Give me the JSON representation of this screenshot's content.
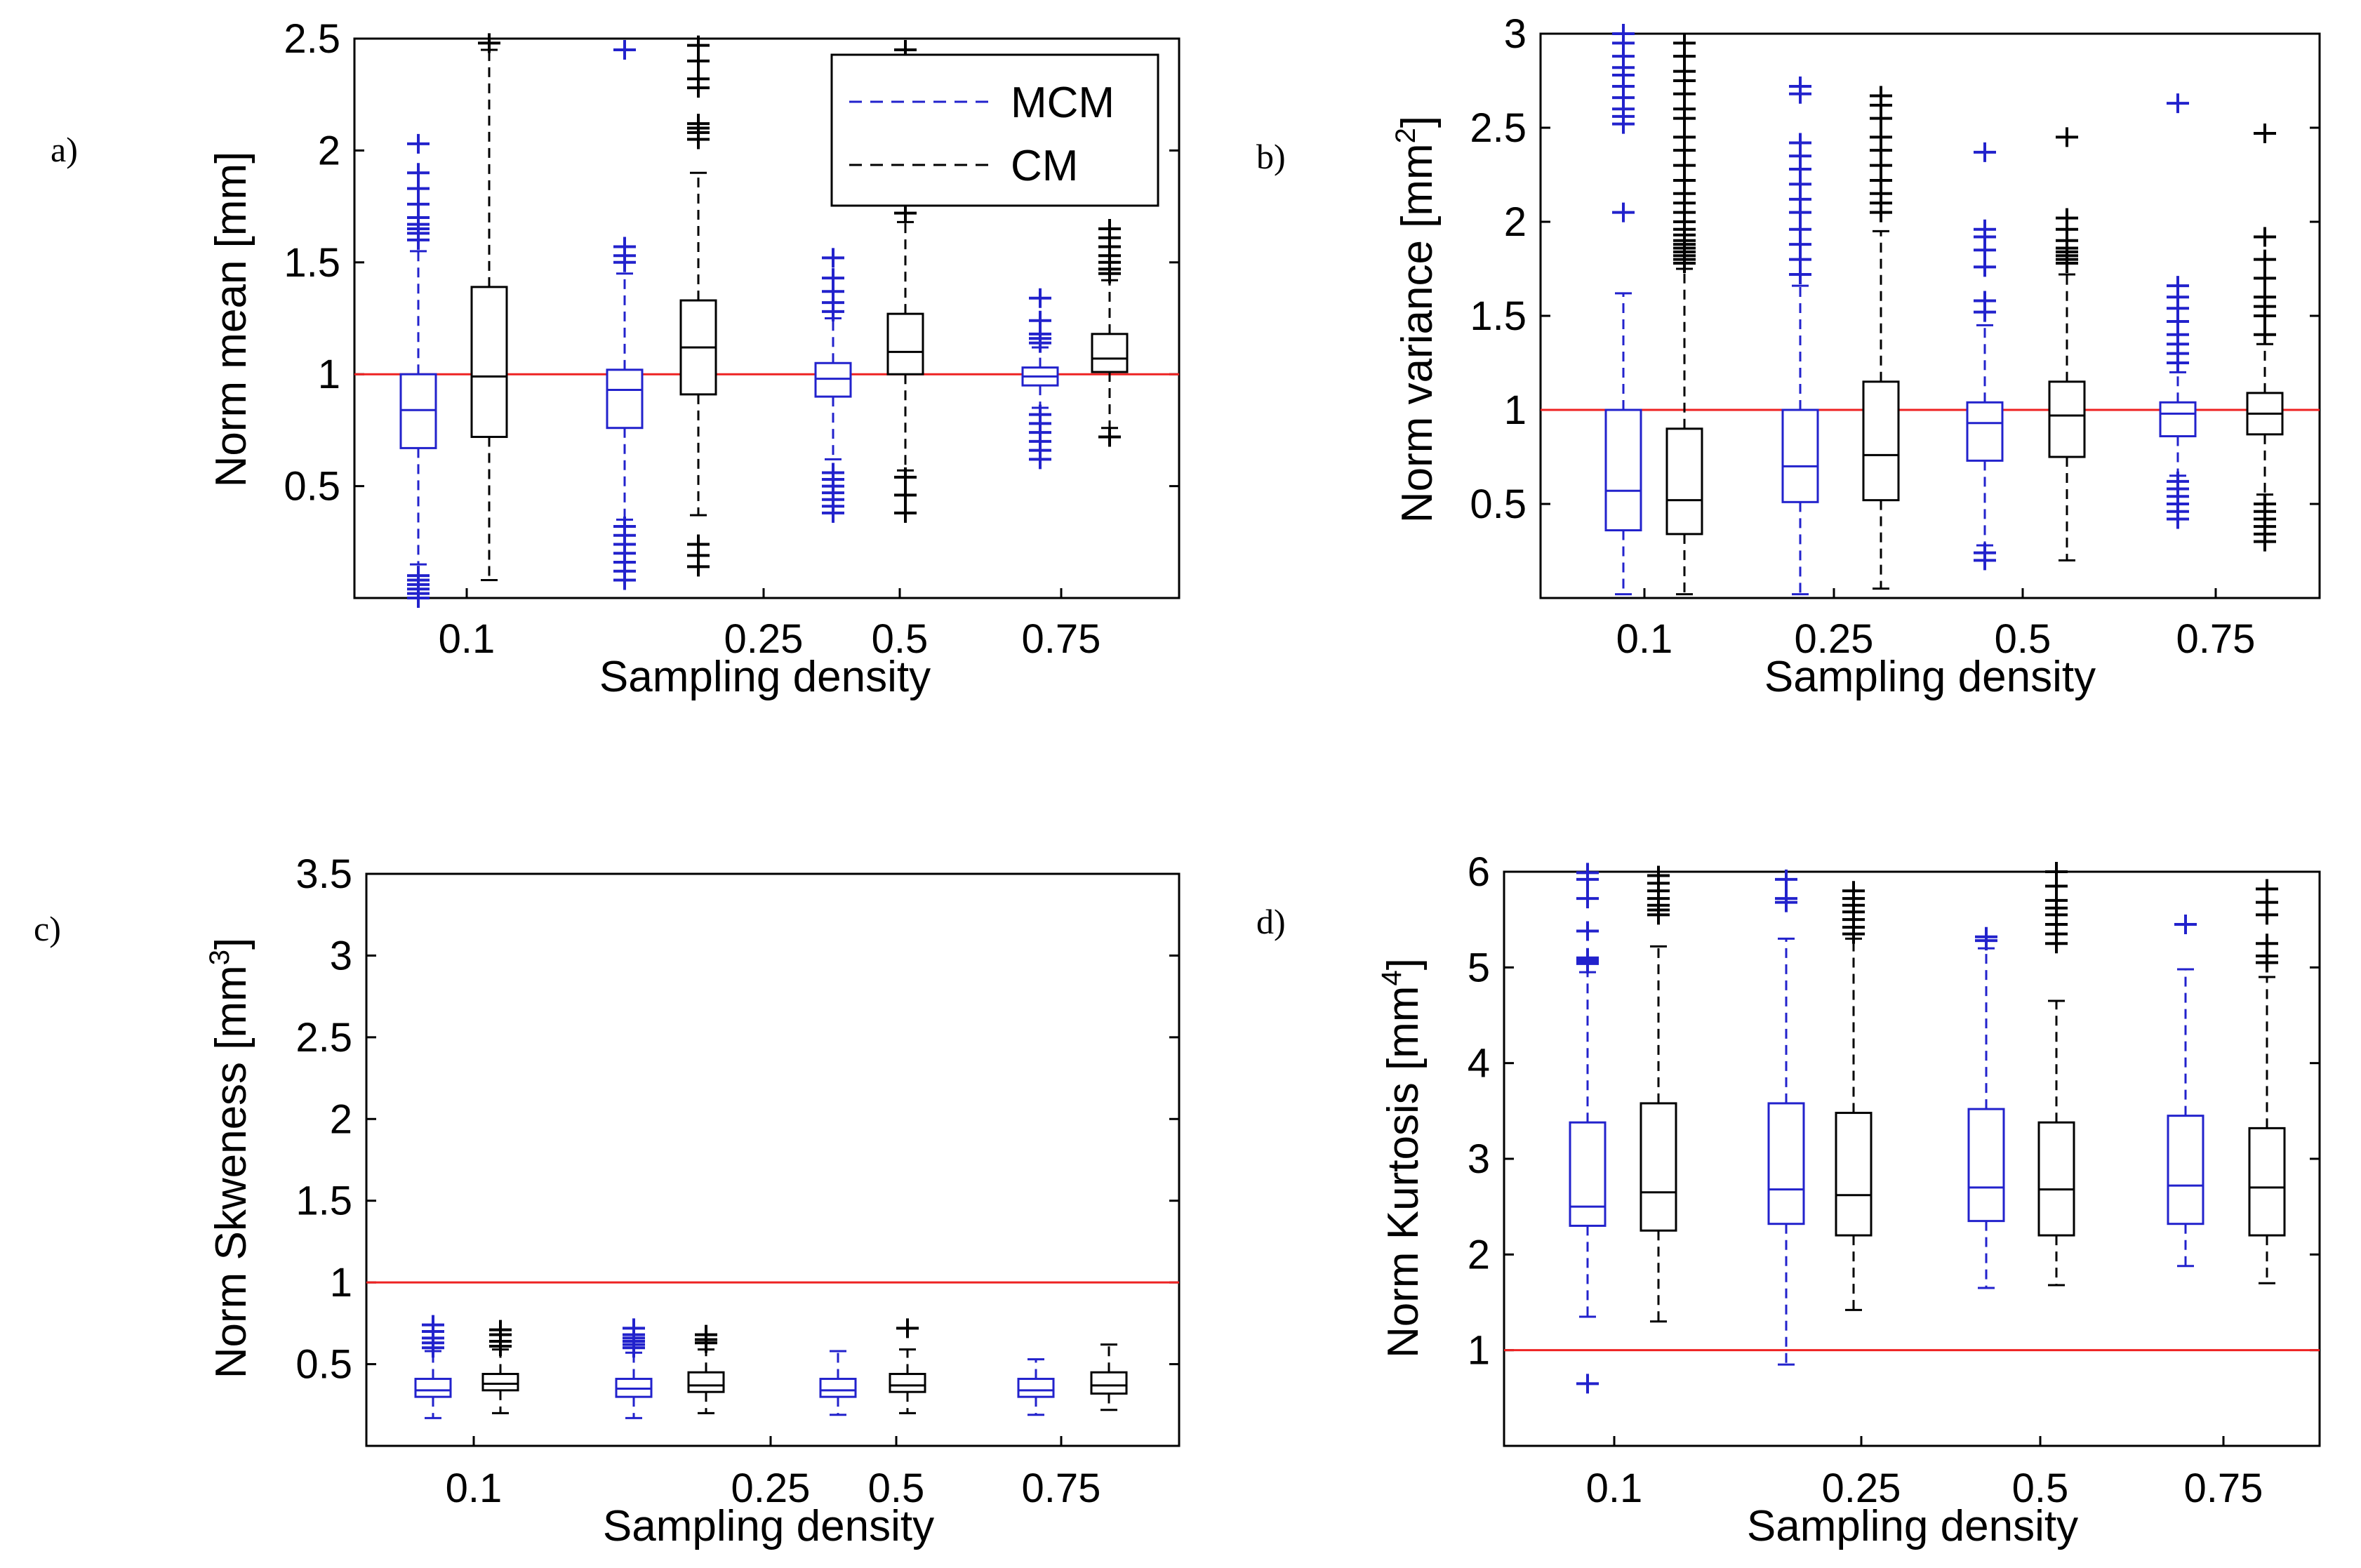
{
  "chart_data": [
    {
      "panel": "a)",
      "type": "boxplot",
      "xlabel": "Sampling density",
      "ylabel": "Norm mean [mm]",
      "ylabel_sup": "",
      "ylim": [
        0,
        2.5
      ],
      "yticks": [
        "0.5",
        "1",
        "1.5",
        "2",
        "2.5"
      ],
      "categories": [
        "0.1",
        "0.25",
        "0.5",
        "0.75"
      ],
      "reference_line": 1,
      "legend": {
        "position": "top-right",
        "entries": [
          "MCM",
          "CM"
        ]
      },
      "series": [
        {
          "name": "MCM",
          "color": "#2222cc",
          "boxes": [
            {
              "q1": 0.67,
              "median": 0.84,
              "q3": 1.0,
              "lw": 0.15,
              "uw": 1.55,
              "outliers": [
                0.0,
                0.02,
                0.04,
                0.06,
                0.08,
                0.1,
                1.6,
                1.63,
                1.65,
                1.67,
                1.7,
                1.76,
                1.83,
                1.9,
                2.03
              ]
            },
            {
              "q1": 0.76,
              "median": 0.93,
              "q3": 1.02,
              "lw": 0.35,
              "uw": 1.45,
              "outliers": [
                0.08,
                0.12,
                0.16,
                0.2,
                0.24,
                0.28,
                0.32,
                1.5,
                1.53,
                1.57,
                2.45
              ]
            },
            {
              "q1": 0.9,
              "median": 0.98,
              "q3": 1.05,
              "lw": 0.62,
              "uw": 1.25,
              "outliers": [
                0.38,
                0.41,
                0.44,
                0.47,
                0.5,
                0.53,
                0.56,
                1.28,
                1.32,
                1.37,
                1.43,
                1.52
              ]
            },
            {
              "q1": 0.95,
              "median": 0.99,
              "q3": 1.03,
              "lw": 0.85,
              "uw": 1.12,
              "outliers": [
                0.62,
                0.66,
                0.7,
                0.74,
                0.78,
                0.82,
                1.14,
                1.16,
                1.18,
                1.24,
                1.34
              ]
            }
          ]
        },
        {
          "name": "CM",
          "color": "#000000",
          "boxes": [
            {
              "q1": 0.72,
              "median": 0.99,
              "q3": 1.39,
              "lw": 0.08,
              "uw": 2.45,
              "outliers": [
                2.48
              ]
            },
            {
              "q1": 0.91,
              "median": 1.12,
              "q3": 1.33,
              "lw": 0.37,
              "uw": 1.9,
              "outliers": [
                0.14,
                0.19,
                0.24,
                2.05,
                2.08,
                2.1,
                2.12,
                2.28,
                2.32,
                2.4,
                2.47
              ]
            },
            {
              "q1": 1.0,
              "median": 1.1,
              "q3": 1.27,
              "lw": 0.57,
              "uw": 1.68,
              "outliers": [
                0.38,
                0.46,
                0.54,
                1.72,
                2.45
              ]
            },
            {
              "q1": 1.01,
              "median": 1.07,
              "q3": 1.18,
              "lw": 0.76,
              "uw": 1.42,
              "outliers": [
                0.72,
                1.45,
                1.47,
                1.5,
                1.53,
                1.57,
                1.61,
                1.65
              ]
            }
          ]
        }
      ]
    },
    {
      "panel": "b)",
      "type": "boxplot",
      "xlabel": "Sampling density",
      "ylabel": "Norm variance [mm",
      "ylabel_sup": "2",
      "ylim": [
        0,
        3
      ],
      "yticks": [
        "0.5",
        "1",
        "1.5",
        "2",
        "2.5",
        "3"
      ],
      "categories": [
        "0.1",
        "0.25",
        "0.5",
        "0.75"
      ],
      "reference_line": 1,
      "series": [
        {
          "name": "MCM",
          "color": "#2222cc",
          "boxes": [
            {
              "q1": 0.36,
              "median": 0.57,
              "q3": 1.0,
              "lw": 0.02,
              "uw": 1.62,
              "outliers": [
                2.05,
                2.52,
                2.56,
                2.6,
                2.66,
                2.72,
                2.78,
                2.82,
                2.88,
                2.95,
                3.0
              ]
            },
            {
              "q1": 0.51,
              "median": 0.7,
              "q3": 1.0,
              "lw": 0.02,
              "uw": 1.66,
              "outliers": [
                1.72,
                1.8,
                1.88,
                1.96,
                2.05,
                2.12,
                2.2,
                2.28,
                2.35,
                2.42,
                2.68,
                2.72
              ]
            },
            {
              "q1": 0.73,
              "median": 0.93,
              "q3": 1.04,
              "lw": 0.28,
              "uw": 1.45,
              "outliers": [
                0.2,
                0.24,
                1.52,
                1.58,
                1.76,
                1.85,
                1.92,
                1.96,
                2.37
              ]
            },
            {
              "q1": 0.86,
              "median": 0.98,
              "q3": 1.04,
              "lw": 0.65,
              "uw": 1.2,
              "outliers": [
                0.42,
                0.46,
                0.5,
                0.54,
                0.58,
                0.62,
                1.25,
                1.3,
                1.35,
                1.4,
                1.47,
                1.54,
                1.6,
                1.66,
                2.63
              ]
            }
          ]
        },
        {
          "name": "CM",
          "color": "#000000",
          "boxes": [
            {
              "q1": 0.34,
              "median": 0.52,
              "q3": 0.9,
              "lw": 0.02,
              "uw": 1.75,
              "outliers": [
                1.78,
                1.8,
                1.82,
                1.84,
                1.86,
                1.88,
                1.9,
                1.93,
                1.96,
                2.0,
                2.05,
                2.1,
                2.15,
                2.22,
                2.3,
                2.38,
                2.45,
                2.55,
                2.6,
                2.68,
                2.75,
                2.8,
                2.88,
                2.95
              ]
            },
            {
              "q1": 0.52,
              "median": 0.76,
              "q3": 1.15,
              "lw": 0.05,
              "uw": 1.95,
              "outliers": [
                2.05,
                2.1,
                2.15,
                2.22,
                2.3,
                2.38,
                2.45,
                2.55,
                2.62,
                2.67
              ]
            },
            {
              "q1": 0.75,
              "median": 0.97,
              "q3": 1.15,
              "lw": 0.2,
              "uw": 1.72,
              "outliers": [
                1.78,
                1.8,
                1.82,
                1.84,
                1.86,
                1.9,
                1.96,
                2.02,
                2.45
              ]
            },
            {
              "q1": 0.87,
              "median": 0.98,
              "q3": 1.09,
              "lw": 0.55,
              "uw": 1.35,
              "outliers": [
                0.3,
                0.34,
                0.38,
                0.42,
                0.46,
                0.5,
                1.4,
                1.5,
                1.55,
                1.6,
                1.7,
                1.8,
                1.92,
                2.47
              ]
            }
          ]
        }
      ]
    },
    {
      "panel": "c)",
      "type": "boxplot",
      "xlabel": "Sampling density",
      "ylabel": "Norm Skweness [mm",
      "ylabel_sup": "3",
      "ylim": [
        0,
        3.5
      ],
      "yticks": [
        "0.5",
        "1",
        "1.5",
        "2",
        "2.5",
        "3",
        "3.5"
      ],
      "categories": [
        "0.1",
        "0.25",
        "0.5",
        "0.75"
      ],
      "reference_line": 1,
      "series": [
        {
          "name": "MCM",
          "color": "#2222cc",
          "boxes": [
            {
              "q1": 0.3,
              "median": 0.34,
              "q3": 0.41,
              "lw": 0.17,
              "uw": 0.58,
              "outliers": [
                0.6,
                0.63,
                0.66,
                0.7,
                0.74
              ]
            },
            {
              "q1": 0.3,
              "median": 0.35,
              "q3": 0.41,
              "lw": 0.17,
              "uw": 0.57,
              "outliers": [
                0.6,
                0.62,
                0.64,
                0.66,
                0.68,
                0.72
              ]
            },
            {
              "q1": 0.3,
              "median": 0.34,
              "q3": 0.41,
              "lw": 0.19,
              "uw": 0.58,
              "outliers": []
            },
            {
              "q1": 0.3,
              "median": 0.34,
              "q3": 0.41,
              "lw": 0.19,
              "uw": 0.53,
              "outliers": []
            }
          ]
        },
        {
          "name": "CM",
          "color": "#000000",
          "boxes": [
            {
              "q1": 0.34,
              "median": 0.38,
              "q3": 0.44,
              "lw": 0.2,
              "uw": 0.59,
              "outliers": [
                0.61,
                0.64,
                0.68,
                0.71
              ]
            },
            {
              "q1": 0.33,
              "median": 0.37,
              "q3": 0.45,
              "lw": 0.2,
              "uw": 0.59,
              "outliers": [
                0.63,
                0.65,
                0.68
              ]
            },
            {
              "q1": 0.33,
              "median": 0.37,
              "q3": 0.44,
              "lw": 0.2,
              "uw": 0.59,
              "outliers": [
                0.72
              ]
            },
            {
              "q1": 0.32,
              "median": 0.37,
              "q3": 0.45,
              "lw": 0.22,
              "uw": 0.62,
              "outliers": []
            }
          ]
        }
      ]
    },
    {
      "panel": "d)",
      "type": "boxplot",
      "xlabel": "Sampling density",
      "ylabel": "Norm Kurtosis [mm",
      "ylabel_sup": "4",
      "ylim": [
        0,
        6
      ],
      "yticks": [
        "1",
        "2",
        "3",
        "4",
        "5",
        "6"
      ],
      "categories": [
        "0.1",
        "0.25",
        "0.5",
        "0.75"
      ],
      "reference_line": 1,
      "series": [
        {
          "name": "MCM",
          "color": "#2222cc",
          "boxes": [
            {
              "q1": 2.3,
              "median": 2.5,
              "q3": 3.38,
              "lw": 1.35,
              "uw": 4.95,
              "outliers": [
                0.65,
                5.04,
                5.06,
                5.08,
                5.1,
                5.38,
                5.72,
                5.92,
                5.99
              ]
            },
            {
              "q1": 2.32,
              "median": 2.68,
              "q3": 3.58,
              "lw": 0.85,
              "uw": 5.3,
              "outliers": [
                5.68,
                5.72,
                5.92
              ]
            },
            {
              "q1": 2.35,
              "median": 2.7,
              "q3": 3.52,
              "lw": 1.65,
              "uw": 5.2,
              "outliers": [
                5.28,
                5.32
              ]
            },
            {
              "q1": 2.32,
              "median": 2.72,
              "q3": 3.45,
              "lw": 1.88,
              "uw": 4.98,
              "outliers": [
                5.45
              ]
            }
          ]
        },
        {
          "name": "CM",
          "color": "#000000",
          "boxes": [
            {
              "q1": 2.25,
              "median": 2.65,
              "q3": 3.58,
              "lw": 1.3,
              "uw": 5.22,
              "outliers": [
                5.55,
                5.6,
                5.65,
                5.72,
                5.8,
                5.88,
                5.96
              ]
            },
            {
              "q1": 2.2,
              "median": 2.62,
              "q3": 3.48,
              "lw": 1.42,
              "uw": 5.3,
              "outliers": [
                5.35,
                5.42,
                5.5,
                5.58,
                5.65,
                5.72,
                5.8
              ]
            },
            {
              "q1": 2.2,
              "median": 2.68,
              "q3": 3.38,
              "lw": 1.68,
              "uw": 4.65,
              "outliers": [
                5.25,
                5.35,
                5.45,
                5.55,
                5.62,
                5.7,
                5.85,
                6.0
              ]
            },
            {
              "q1": 2.2,
              "median": 2.7,
              "q3": 3.32,
              "lw": 1.7,
              "uw": 4.9,
              "outliers": [
                5.05,
                5.12,
                5.25,
                5.55,
                5.68,
                5.82
              ]
            }
          ]
        }
      ]
    }
  ]
}
